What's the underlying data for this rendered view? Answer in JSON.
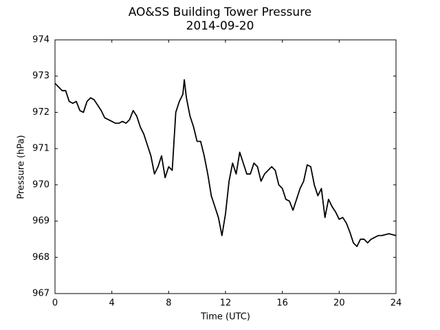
{
  "chart_data": {
    "type": "line",
    "title": "AO&SS Building Tower Pressure",
    "subtitle": "2014-09-20",
    "xlabel": "Time (UTC)",
    "ylabel": "Pressure (hPa)",
    "color": "#000000",
    "x": [
      0,
      0.25,
      0.5,
      0.75,
      1,
      1.25,
      1.5,
      1.75,
      2,
      2.25,
      2.5,
      2.75,
      3,
      3.25,
      3.5,
      3.75,
      4,
      4.25,
      4.5,
      4.75,
      5,
      5.25,
      5.5,
      5.75,
      6,
      6.25,
      6.5,
      6.75,
      7,
      7.25,
      7.5,
      7.75,
      8,
      8.25,
      8.5,
      8.75,
      9,
      9.1,
      9.25,
      9.5,
      9.75,
      10,
      10.25,
      10.5,
      10.75,
      11,
      11.25,
      11.5,
      11.75,
      12,
      12.25,
      12.5,
      12.75,
      13,
      13.25,
      13.5,
      13.75,
      14,
      14.25,
      14.5,
      14.75,
      15,
      15.25,
      15.5,
      15.75,
      16,
      16.25,
      16.5,
      16.75,
      17,
      17.25,
      17.5,
      17.75,
      18,
      18.25,
      18.5,
      18.75,
      19,
      19.25,
      19.5,
      19.75,
      20,
      20.25,
      20.5,
      20.75,
      21,
      21.25,
      21.5,
      21.75,
      22,
      22.25,
      22.5,
      22.75,
      23,
      23.5,
      24
    ],
    "values": [
      972.8,
      972.7,
      972.6,
      972.6,
      972.3,
      972.25,
      972.3,
      972.05,
      972.0,
      972.3,
      972.4,
      972.35,
      972.2,
      972.05,
      971.85,
      971.8,
      971.75,
      971.7,
      971.7,
      971.75,
      971.7,
      971.8,
      972.05,
      971.9,
      971.6,
      971.4,
      971.1,
      970.8,
      970.3,
      970.5,
      970.8,
      970.2,
      970.5,
      970.4,
      972.0,
      972.3,
      972.5,
      972.9,
      972.4,
      971.9,
      971.6,
      971.2,
      971.2,
      970.8,
      970.3,
      969.7,
      969.4,
      969.1,
      968.6,
      969.2,
      970.1,
      970.6,
      970.3,
      970.9,
      970.6,
      970.3,
      970.3,
      970.6,
      970.5,
      970.1,
      970.3,
      970.4,
      970.5,
      970.4,
      970.0,
      969.9,
      969.6,
      969.55,
      969.3,
      969.6,
      969.9,
      970.1,
      970.55,
      970.5,
      970.0,
      969.7,
      969.9,
      969.1,
      969.6,
      969.4,
      969.25,
      969.05,
      969.1,
      968.95,
      968.7,
      968.4,
      968.3,
      968.5,
      968.5,
      968.4,
      968.5,
      968.55,
      968.6,
      968.6,
      968.65,
      968.6
    ],
    "xlim": [
      0,
      24
    ],
    "xticks": [
      0,
      4,
      8,
      12,
      16,
      20,
      24
    ],
    "ylim": [
      967,
      974
    ],
    "yticks": [
      967,
      968,
      969,
      970,
      971,
      972,
      973,
      974
    ]
  }
}
